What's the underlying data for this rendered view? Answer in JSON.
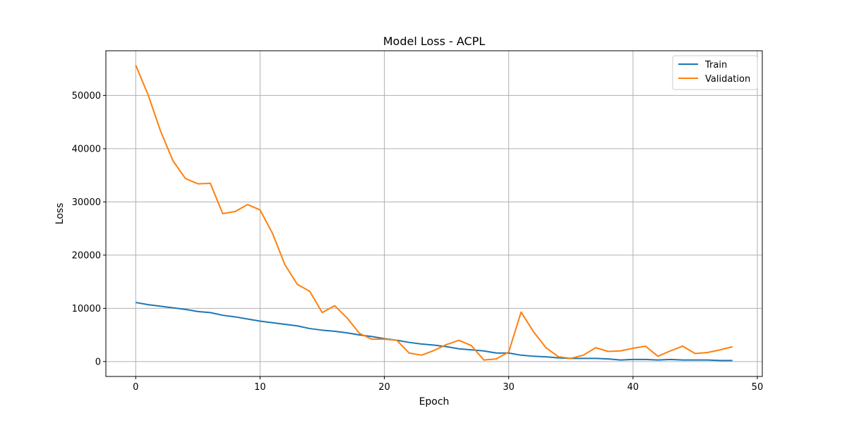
{
  "chart_data": {
    "type": "line",
    "title": "Model Loss - ACPL",
    "xlabel": "Epoch",
    "ylabel": "Loss",
    "xlim": [
      -2.4,
      50.4
    ],
    "ylim": [
      -2800,
      58400
    ],
    "xticks": [
      0,
      10,
      20,
      30,
      40,
      50
    ],
    "yticks": [
      0,
      10000,
      20000,
      30000,
      40000,
      50000
    ],
    "grid": true,
    "legend_position": "top-right",
    "x": [
      0,
      1,
      2,
      3,
      4,
      5,
      6,
      7,
      8,
      9,
      10,
      11,
      12,
      13,
      14,
      15,
      16,
      17,
      18,
      19,
      20,
      21,
      22,
      23,
      24,
      25,
      26,
      27,
      28,
      29,
      30,
      31,
      32,
      33,
      34,
      35,
      36,
      37,
      38,
      39,
      40,
      41,
      42,
      43,
      44,
      45,
      46,
      47,
      48
    ],
    "series": [
      {
        "name": "Train",
        "color": "#1f77b4",
        "values": [
          11100,
          10700,
          10400,
          10100,
          9800,
          9400,
          9200,
          8700,
          8400,
          8000,
          7600,
          7300,
          7000,
          6700,
          6200,
          5900,
          5700,
          5400,
          5000,
          4700,
          4300,
          4000,
          3600,
          3300,
          3100,
          2800,
          2400,
          2200,
          2000,
          1600,
          1600,
          1200,
          1000,
          900,
          700,
          600,
          600,
          600,
          500,
          300,
          400,
          400,
          300,
          400,
          300,
          300,
          300,
          200,
          200
        ]
      },
      {
        "name": "Validation",
        "color": "#ff7f0e",
        "values": [
          55700,
          50100,
          43300,
          37700,
          34400,
          33400,
          33500,
          27800,
          28200,
          29500,
          28500,
          24100,
          18200,
          14500,
          13200,
          9200,
          10500,
          8200,
          5300,
          4200,
          4200,
          4000,
          1600,
          1200,
          2100,
          3200,
          4000,
          3000,
          300,
          500,
          1800,
          9300,
          5600,
          2600,
          900,
          600,
          1200,
          2600,
          1900,
          2000,
          2500,
          2900,
          1000,
          2000,
          2900,
          1500,
          1700,
          2200,
          2800
        ]
      }
    ]
  }
}
